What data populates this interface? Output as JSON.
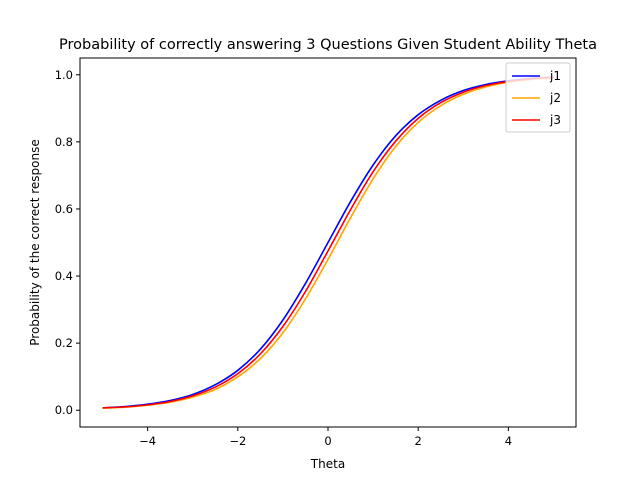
{
  "chart_data": {
    "type": "line",
    "title": "Probability of correctly answering 3 Questions Given Student Ability Theta",
    "xlabel": "Theta",
    "ylabel": "Probability of the correct response",
    "xlim": [
      -5.5,
      5.5
    ],
    "ylim": [
      -0.05,
      1.05
    ],
    "xticks": [
      -4,
      -2,
      0,
      2,
      4
    ],
    "xtick_labels": [
      "−4",
      "−2",
      "0",
      "2",
      "4"
    ],
    "yticks": [
      0.0,
      0.2,
      0.4,
      0.6,
      0.8,
      1.0
    ],
    "ytick_labels": [
      "0.0",
      "0.2",
      "0.4",
      "0.6",
      "0.8",
      "1.0"
    ],
    "grid": false,
    "legend_position": "top-right",
    "x": [
      -5,
      -4.5,
      -4,
      -3.5,
      -3,
      -2.5,
      -2,
      -1.5,
      -1,
      -0.5,
      0,
      0.5,
      1,
      1.5,
      2,
      2.5,
      3,
      3.5,
      4,
      4.5,
      5
    ],
    "series": [
      {
        "name": "j1",
        "color": "#0000ff",
        "values": [
          0.007,
          0.011,
          0.018,
          0.029,
          0.047,
          0.076,
          0.119,
          0.182,
          0.269,
          0.378,
          0.5,
          0.622,
          0.731,
          0.818,
          0.881,
          0.924,
          0.953,
          0.971,
          0.982,
          0.989,
          0.993
        ]
      },
      {
        "name": "j2",
        "color": "#ffa500",
        "values": [
          0.006,
          0.009,
          0.015,
          0.024,
          0.039,
          0.062,
          0.1,
          0.154,
          0.231,
          0.332,
          0.45,
          0.574,
          0.69,
          0.786,
          0.858,
          0.908,
          0.942,
          0.964,
          0.978,
          0.986,
          0.991
        ]
      },
      {
        "name": "j3",
        "color": "#ff0000",
        "values": [
          0.007,
          0.01,
          0.016,
          0.026,
          0.043,
          0.069,
          0.109,
          0.168,
          0.25,
          0.354,
          0.475,
          0.598,
          0.711,
          0.802,
          0.87,
          0.917,
          0.948,
          0.968,
          0.98,
          0.988,
          0.992
        ]
      }
    ]
  }
}
